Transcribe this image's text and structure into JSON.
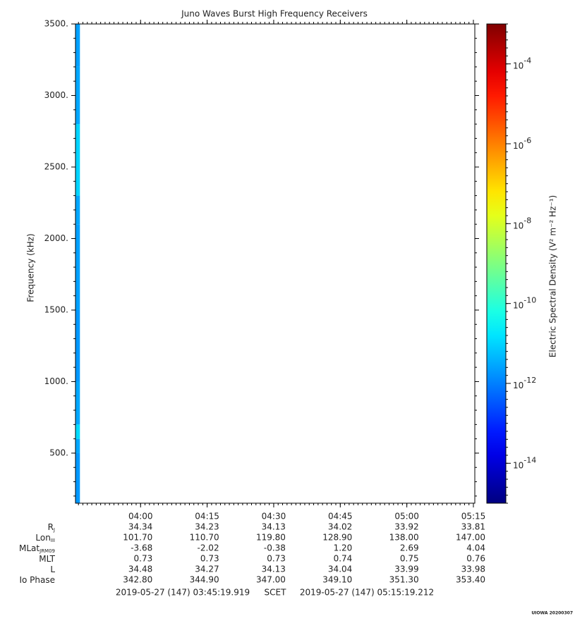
{
  "chart_data": {
    "type": "spectrogram",
    "title": "Juno Waves Burst High Frequency Receivers",
    "ylabel": "Frequency (kHz)",
    "ylim": [
      150,
      3500
    ],
    "yticks": [
      {
        "value": 500,
        "label": "500."
      },
      {
        "value": 1000,
        "label": "1000."
      },
      {
        "value": 1500,
        "label": "1500."
      },
      {
        "value": 2000,
        "label": "2000."
      },
      {
        "value": 2500,
        "label": "2500."
      },
      {
        "value": 3000,
        "label": "3000."
      },
      {
        "value": 3500,
        "label": "3500."
      }
    ],
    "xlim": [
      "03:45:19.919",
      "05:15:19.212"
    ],
    "xticks": [
      "04:00",
      "04:15",
      "04:30",
      "04:45",
      "05:00",
      "05:15"
    ],
    "time_bins": [
      "03:45:19.919",
      "03:46:19.919"
    ],
    "freq_bins": [
      150,
      500,
      600,
      700,
      1000,
      1500,
      2100,
      2300,
      2800,
      3200,
      3500
    ],
    "z": [
      [
        2e-12,
        3e-12,
        1.2e-11,
        3e-12,
        2e-12,
        2.5e-12,
        3e-12,
        1e-11,
        3e-12,
        2.5e-12
      ]
    ],
    "colormap": "jet",
    "zscale": "log",
    "zlim": [
      1e-15,
      0.001
    ],
    "zlabel": "Electric Spectral Density (V² m⁻² Hz⁻¹)",
    "zticks": [
      {
        "value": 1e-14,
        "label": "10",
        "exponent": "-14"
      },
      {
        "value": 1e-12,
        "label": "10",
        "exponent": "-12"
      },
      {
        "value": 1e-10,
        "label": "10",
        "exponent": "-10"
      },
      {
        "value": 1e-08,
        "label": "10",
        "exponent": "-8"
      },
      {
        "value": 1e-06,
        "label": "10",
        "exponent": "-6"
      },
      {
        "value": 0.0001,
        "label": "10",
        "exponent": "-4"
      }
    ],
    "ephemeris": [
      {
        "label": "R",
        "sub": "J",
        "values": [
          "34.34",
          "34.23",
          "34.13",
          "34.02",
          "33.92",
          "33.81"
        ]
      },
      {
        "label": "Lon",
        "sub": "III",
        "values": [
          "101.70",
          "110.70",
          "119.80",
          "128.90",
          "138.00",
          "147.00"
        ]
      },
      {
        "label": "MLat",
        "sub": "JRM09",
        "values": [
          "-3.68",
          "-2.02",
          "-0.38",
          "1.20",
          "2.69",
          "4.04"
        ]
      },
      {
        "label": "MLT",
        "values": [
          "0.73",
          "0.73",
          "0.73",
          "0.74",
          "0.75",
          "0.76"
        ]
      },
      {
        "label": "L",
        "values": [
          "34.48",
          "34.27",
          "34.13",
          "34.04",
          "33.99",
          "33.98"
        ]
      },
      {
        "label": "Io Phase",
        "values": [
          "342.80",
          "344.90",
          "347.00",
          "349.10",
          "351.30",
          "353.40"
        ]
      }
    ],
    "footer": {
      "start": "2019-05-27 (147) 03:45:19.919",
      "middle": "SCET",
      "end": "2019-05-27 (147) 05:15:19.212"
    },
    "credit": "UIOWA 20200307"
  }
}
